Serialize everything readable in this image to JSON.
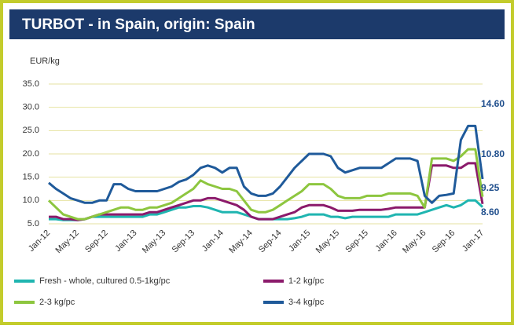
{
  "chart_data": {
    "type": "line",
    "title": "TURBOT - in Spain, origin: Spain",
    "y_label": "EUR/kg",
    "categories": [
      "Jan-12",
      null,
      null,
      null,
      "May-12",
      null,
      null,
      null,
      "Sep-12",
      null,
      null,
      null,
      "Jan-13",
      null,
      null,
      null,
      "May-13",
      null,
      null,
      null,
      "Sep-13",
      null,
      null,
      null,
      "Jan-14",
      null,
      null,
      null,
      "May-14",
      null,
      null,
      null,
      "Sep-14",
      null,
      null,
      null,
      "Jan-15",
      null,
      null,
      null,
      "May-15",
      null,
      null,
      null,
      "Sep-15",
      null,
      null,
      null,
      "Jan-16",
      null,
      null,
      null,
      "May-16",
      null,
      null,
      null,
      "Sep-16",
      null,
      null,
      null,
      "Jan-17"
    ],
    "series": [
      {
        "name": "Fresh - whole, cultured 0.5-1kg/pc",
        "color": "#1fb5b0",
        "values": [
          6,
          6,
          5.8,
          5.8,
          5.8,
          6,
          6.5,
          6.5,
          6.5,
          6.5,
          6.5,
          6.5,
          6.5,
          6.5,
          7,
          7,
          7.5,
          8,
          8.5,
          8.5,
          8.8,
          8.8,
          8.5,
          8,
          7.5,
          7.5,
          7.5,
          7,
          6.5,
          6,
          6,
          6,
          6,
          6,
          6.2,
          6.5,
          7,
          7,
          7,
          6.5,
          6.5,
          6.2,
          6.5,
          6.5,
          6.5,
          6.5,
          6.5,
          6.5,
          7,
          7,
          7,
          7,
          7.5,
          8,
          8.5,
          9,
          8.5,
          9,
          10,
          10,
          8.6
        ]
      },
      {
        "name": "1-2 kg/pc",
        "color": "#8b1a6b",
        "values": [
          6.5,
          6.5,
          6,
          6,
          5.8,
          6,
          6.5,
          7,
          7,
          7,
          7,
          7,
          7,
          7,
          7.5,
          7.5,
          8,
          8.5,
          9,
          9.5,
          10,
          10,
          10.5,
          10.5,
          10,
          9.5,
          9,
          8,
          6.5,
          6,
          6,
          6,
          6.5,
          7,
          7.5,
          8.5,
          9,
          9,
          9,
          8.5,
          7.8,
          7.8,
          7.8,
          8,
          8,
          8,
          8,
          8.2,
          8.5,
          8.5,
          8.5,
          8.5,
          8.5,
          17.5,
          17.5,
          17.5,
          17,
          17,
          18,
          18,
          9.25
        ]
      },
      {
        "name": "2-3 kg/pc",
        "color": "#8dc63f",
        "values": [
          10,
          8.5,
          7,
          6.5,
          6,
          6,
          6.5,
          7,
          7.5,
          8,
          8.5,
          8.5,
          8,
          8,
          8.5,
          8.5,
          9,
          9.5,
          10.5,
          11.5,
          12.5,
          14.3,
          13.5,
          13,
          12.5,
          12.5,
          12,
          10,
          8,
          7.5,
          7.5,
          8,
          9,
          10,
          11,
          12,
          13.5,
          13.5,
          13.5,
          12.5,
          11,
          10.5,
          10.5,
          10.5,
          11,
          11,
          11,
          11.5,
          11.5,
          11.5,
          11.5,
          11,
          8.5,
          19,
          19,
          19,
          18.5,
          19.5,
          21,
          21,
          10.8
        ]
      },
      {
        "name": "3-4 kg/pc",
        "color": "#1f5a9a",
        "values": [
          13.8,
          12.5,
          11.5,
          10.5,
          10,
          9.5,
          9.5,
          10,
          10,
          13.5,
          13.5,
          12.5,
          12,
          12,
          12,
          12,
          12.5,
          13,
          14,
          14.5,
          15.5,
          17,
          17.5,
          17,
          16,
          17,
          17,
          13,
          11.5,
          11,
          11,
          11.5,
          13,
          15,
          17,
          18.5,
          20,
          20,
          20,
          19.5,
          17,
          16,
          16.5,
          17,
          17,
          17,
          17,
          18,
          19,
          19,
          19,
          18.5,
          11,
          9.5,
          11,
          11.2,
          11.5,
          23,
          26,
          26,
          14.6
        ]
      }
    ],
    "annotations": [
      "14.60",
      "10.80",
      "9.25",
      "8.60"
    ],
    "annotation_color": "#1f4e8c",
    "ylim": [
      5,
      35
    ],
    "yticks": [
      {
        "value": 5,
        "label": "5.0"
      },
      {
        "value": 10,
        "label": "10.0"
      },
      {
        "value": 15,
        "label": "15.0"
      },
      {
        "value": 20,
        "label": "20.0"
      },
      {
        "value": 25,
        "label": "25.0"
      },
      {
        "value": 30,
        "label": "30.0"
      },
      {
        "value": 35,
        "label": "35.0"
      }
    ],
    "grid": true
  }
}
